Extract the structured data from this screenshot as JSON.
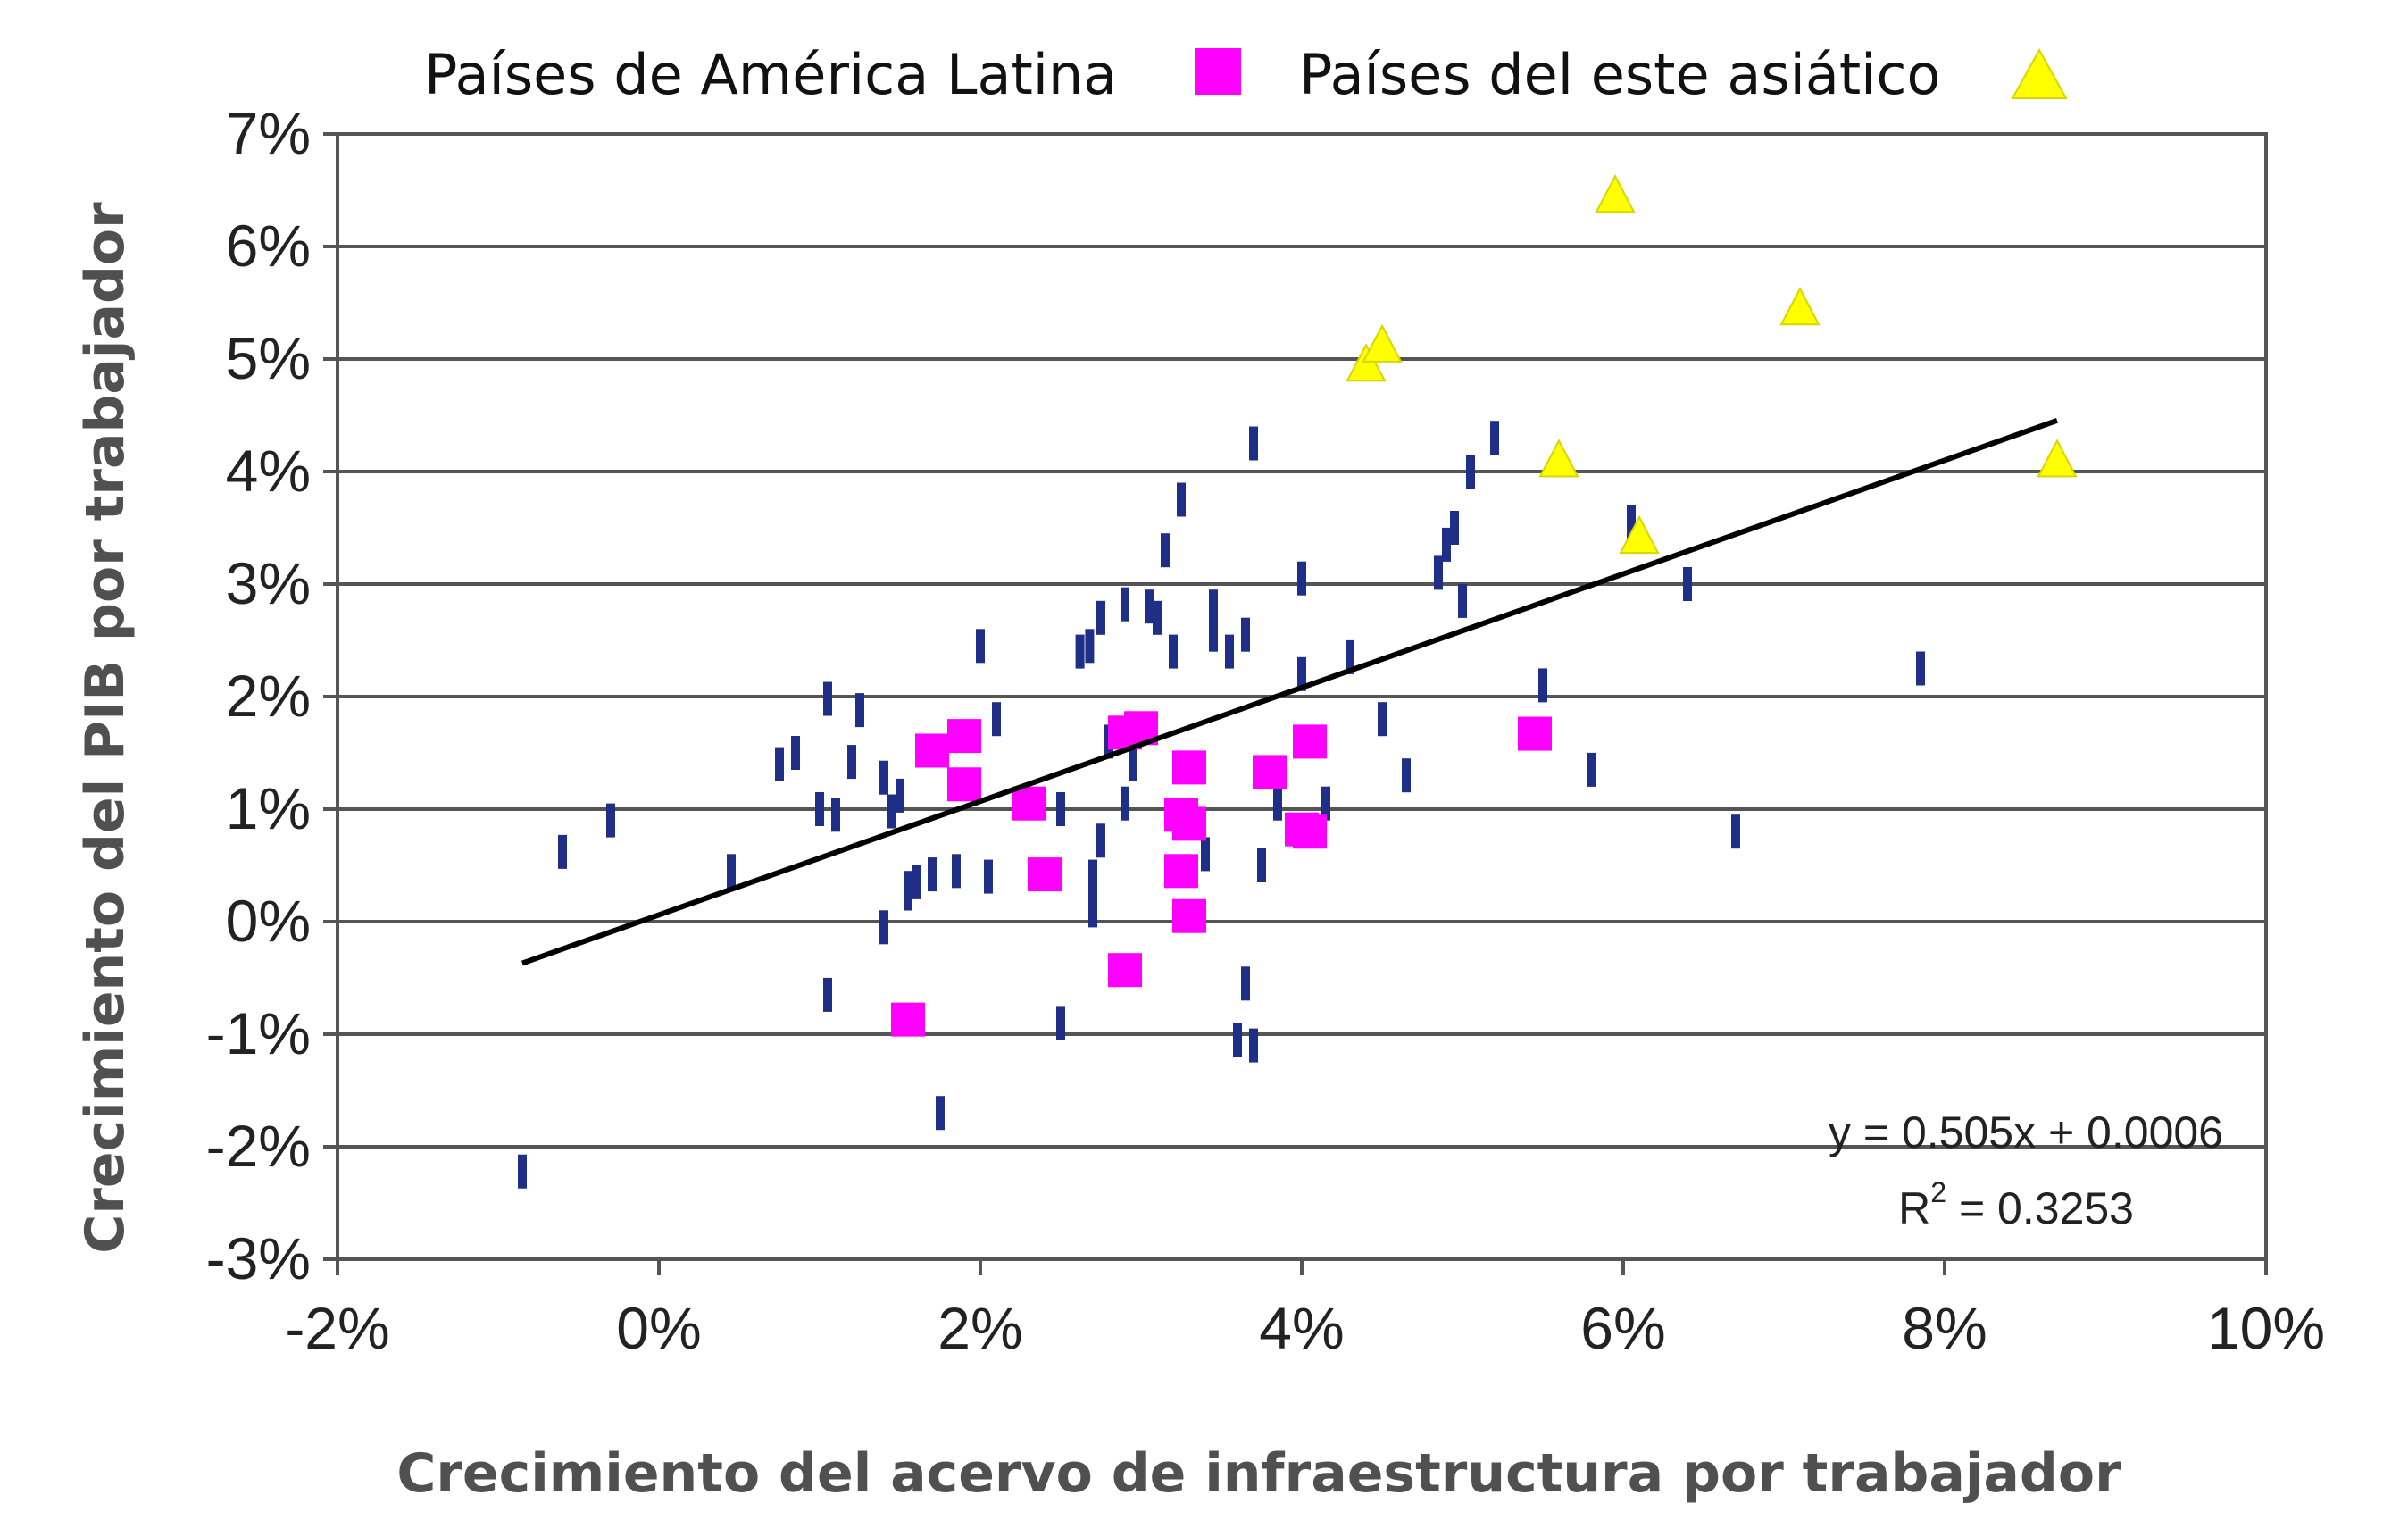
{
  "chart_data": {
    "type": "scatter",
    "xlabel": "Crecimiento del acervo de infraestructura por trabajador",
    "ylabel": "Crecimiento del PIB por trabajador",
    "xlim": [
      -0.02,
      0.1
    ],
    "ylim": [
      -0.03,
      0.07
    ],
    "x_ticks": [
      "-2%",
      "0%",
      "2%",
      "4%",
      "6%",
      "8%",
      "10%"
    ],
    "y_ticks": [
      "7%",
      "6%",
      "5%",
      "4%",
      "3%",
      "2%",
      "1%",
      "0%",
      "-1%",
      "-2%",
      "-3%"
    ],
    "grid": true,
    "legend": {
      "placement": "top",
      "items": [
        {
          "label": "Países de América Latina",
          "marker": "square",
          "color": "#ff00ff"
        },
        {
          "label": "Países del este asiático",
          "marker": "triangle",
          "color": "#ffff00"
        }
      ]
    },
    "series": [
      {
        "name": "Países de América Latina",
        "marker": "square",
        "color": "#ff00ff",
        "points": [
          [
            0.017,
            0.0152
          ],
          [
            0.019,
            0.0165
          ],
          [
            0.019,
            0.0122
          ],
          [
            0.023,
            0.0105
          ],
          [
            0.024,
            0.0042
          ],
          [
            0.029,
            0.0168
          ],
          [
            0.03,
            0.0172
          ],
          [
            0.029,
            -0.0043
          ],
          [
            0.0155,
            -0.0087
          ],
          [
            0.0325,
            0.0095
          ],
          [
            0.033,
            0.0137
          ],
          [
            0.0325,
            0.0045
          ],
          [
            0.033,
            0.0087
          ],
          [
            0.033,
            0.0005
          ],
          [
            0.038,
            0.0133
          ],
          [
            0.04,
            0.0082
          ],
          [
            0.0405,
            0.016
          ],
          [
            0.0405,
            0.008
          ],
          [
            0.0545,
            0.0167
          ]
        ]
      },
      {
        "name": "Países del este asiático",
        "marker": "triangle",
        "color": "#ffff00",
        "points": [
          [
            0.044,
            0.0495
          ],
          [
            0.045,
            0.0512
          ],
          [
            0.056,
            0.041
          ],
          [
            0.0595,
            0.0645
          ],
          [
            0.061,
            0.0342
          ],
          [
            0.071,
            0.0545
          ],
          [
            0.087,
            0.041
          ]
        ]
      },
      {
        "marker": "dash",
        "color": "#1f2e86",
        "points": [
          [
            -0.0085,
            -0.0222
          ],
          [
            -0.006,
            0.0062
          ],
          [
            -0.003,
            0.009
          ],
          [
            0.0045,
            0.0045
          ],
          [
            0.0075,
            0.014
          ],
          [
            0.0085,
            0.015
          ],
          [
            0.01,
            0.01
          ],
          [
            0.0105,
            0.0198
          ],
          [
            0.0105,
            -0.0065
          ],
          [
            0.012,
            0.0142
          ],
          [
            0.0125,
            0.0188
          ],
          [
            0.014,
            0.0128
          ],
          [
            0.014,
            -0.0005
          ],
          [
            0.0145,
            0.0098
          ],
          [
            0.015,
            0.0112
          ],
          [
            0.0155,
            0.003
          ],
          [
            0.016,
            0.0035
          ],
          [
            0.017,
            0.0042
          ],
          [
            0.0175,
            -0.017
          ],
          [
            0.0185,
            0.0045
          ],
          [
            0.02,
            0.0245
          ],
          [
            0.0205,
            0.004
          ],
          [
            0.021,
            0.018
          ],
          [
            0.025,
            0.01
          ],
          [
            0.025,
            -0.009
          ],
          [
            0.0262,
            0.024
          ],
          [
            0.0268,
            0.0245
          ],
          [
            0.027,
            0.004
          ],
          [
            0.027,
            0.001
          ],
          [
            0.0275,
            0.027
          ],
          [
            0.0275,
            0.0072
          ],
          [
            0.028,
            0.016
          ],
          [
            0.029,
            0.0282
          ],
          [
            0.029,
            0.0105
          ],
          [
            0.0295,
            0.014
          ],
          [
            0.0305,
            0.028
          ],
          [
            0.031,
            0.027
          ],
          [
            0.0315,
            0.033
          ],
          [
            0.032,
            0.024
          ],
          [
            0.0325,
            0.0375
          ],
          [
            0.034,
            0.006
          ],
          [
            0.0345,
            0.028
          ],
          [
            0.0345,
            0.0255
          ],
          [
            0.0355,
            0.024
          ],
          [
            0.036,
            -0.0105
          ],
          [
            0.0365,
            0.0255
          ],
          [
            0.0365,
            -0.0055
          ],
          [
            0.037,
            0.0425
          ],
          [
            0.037,
            -0.011
          ],
          [
            0.0375,
            0.005
          ],
          [
            0.0385,
            0.0105
          ],
          [
            0.04,
            0.0305
          ],
          [
            0.04,
            0.022
          ],
          [
            0.043,
            0.0235
          ],
          [
            0.045,
            0.018
          ],
          [
            0.0465,
            0.013
          ],
          [
            0.0485,
            0.031
          ],
          [
            0.049,
            0.0335
          ],
          [
            0.0495,
            0.035
          ],
          [
            0.05,
            0.0285
          ],
          [
            0.0505,
            0.04
          ],
          [
            0.052,
            0.043
          ],
          [
            0.055,
            0.021
          ],
          [
            0.058,
            0.0135
          ],
          [
            0.0605,
            0.0355
          ],
          [
            0.064,
            0.03
          ],
          [
            0.067,
            0.008
          ],
          [
            0.0785,
            0.0225
          ],
          [
            0.0415,
            0.0105
          ],
          [
            0.0155,
            0.0025
          ],
          [
            0.011,
            0.0095
          ]
        ]
      }
    ],
    "trendline": {
      "x_range": [
        -0.0085,
        0.087
      ],
      "slope": 0.505,
      "intercept": 0.0006,
      "color": "#000000",
      "equation_label": "y = 0.505x + 0.0006",
      "r2_label_prefix": "R",
      "r2_label_sup": "2",
      "r2_label_suffix": " = 0.3253"
    }
  }
}
